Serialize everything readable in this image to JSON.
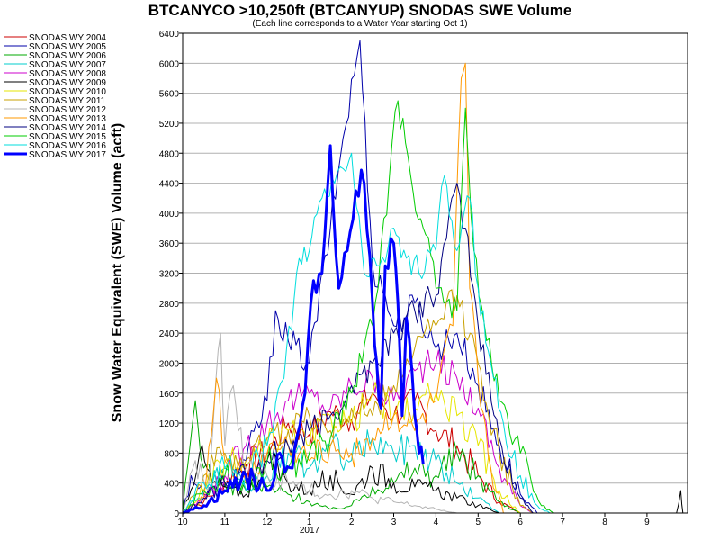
{
  "chart_data": {
    "type": "line",
    "title": "BTCANYCO >10,250ft (BTCANYUP) SNODAS SWE Volume",
    "subtitle": "(Each line corresponds to a Water Year starting Oct 1)",
    "ylabel": "Snow Water Equivalent (SWE) Volume (acft)",
    "xlabel": "",
    "ylim": [
      0,
      6400
    ],
    "yticks": [
      0,
      400,
      800,
      1200,
      1600,
      2000,
      2400,
      2800,
      3200,
      3600,
      4000,
      4400,
      4800,
      5200,
      5600,
      6000,
      6400
    ],
    "xlim": [
      10,
      10.9
    ],
    "xticks": [
      {
        "value": 10,
        "label": "10"
      },
      {
        "value": 11,
        "label": "11"
      },
      {
        "value": 12,
        "label": "12"
      },
      {
        "value": 1,
        "label": "1"
      },
      {
        "value": 2,
        "label": "2"
      },
      {
        "value": 3,
        "label": "3"
      },
      {
        "value": 4,
        "label": "4"
      },
      {
        "value": 5,
        "label": "5"
      },
      {
        "value": 6,
        "label": "6"
      },
      {
        "value": 7,
        "label": "7"
      },
      {
        "value": 8,
        "label": "8"
      },
      {
        "value": 9,
        "label": "9"
      }
    ],
    "xticks_order": [
      10,
      11,
      12,
      1,
      2,
      3,
      4,
      5,
      6,
      7,
      8,
      9
    ],
    "year_label": "2017",
    "grid": "horizontal",
    "legend_position": "left",
    "series": [
      {
        "name": "SNODAS WY 2004",
        "color": "#cc0000",
        "width": 1,
        "points": [
          [
            10.0,
            0
          ],
          [
            10.5,
            150
          ],
          [
            11.0,
            400
          ],
          [
            11.5,
            650
          ],
          [
            12.0,
            800
          ],
          [
            12.5,
            1200
          ],
          [
            1.0,
            1050
          ],
          [
            1.5,
            1350
          ],
          [
            2.0,
            1250
          ],
          [
            2.5,
            1600
          ],
          [
            3.0,
            1300
          ],
          [
            3.5,
            1500
          ],
          [
            4.0,
            1100
          ],
          [
            4.5,
            900
          ],
          [
            5.0,
            500
          ],
          [
            5.5,
            150
          ],
          [
            6.0,
            0
          ]
        ]
      },
      {
        "name": "SNODAS WY 2005",
        "color": "#0000aa",
        "width": 1,
        "points": [
          [
            10.0,
            0
          ],
          [
            10.2,
            500
          ],
          [
            10.5,
            250
          ],
          [
            11.0,
            350
          ],
          [
            11.5,
            700
          ],
          [
            12.0,
            1500
          ],
          [
            12.2,
            2700
          ],
          [
            12.5,
            2300
          ],
          [
            1.0,
            2000
          ],
          [
            1.5,
            3800
          ],
          [
            1.8,
            5000
          ],
          [
            2.2,
            6300
          ],
          [
            2.5,
            3300
          ],
          [
            2.8,
            2900
          ],
          [
            3.0,
            2500
          ],
          [
            3.5,
            2800
          ],
          [
            4.0,
            2200
          ],
          [
            4.5,
            2400
          ],
          [
            5.0,
            1700
          ],
          [
            5.5,
            900
          ],
          [
            6.0,
            250
          ],
          [
            6.4,
            0
          ]
        ]
      },
      {
        "name": "SNODAS WY 2006",
        "color": "#00aa00",
        "width": 1,
        "points": [
          [
            10.0,
            0
          ],
          [
            10.3,
            1500
          ],
          [
            10.5,
            600
          ],
          [
            11.0,
            400
          ],
          [
            11.5,
            300
          ],
          [
            12.0,
            350
          ],
          [
            12.5,
            250
          ],
          [
            1.0,
            150
          ],
          [
            1.5,
            50
          ],
          [
            2.0,
            100
          ],
          [
            2.5,
            350
          ],
          [
            3.0,
            400
          ],
          [
            3.5,
            600
          ],
          [
            4.0,
            500
          ],
          [
            4.5,
            800
          ],
          [
            5.0,
            500
          ],
          [
            5.5,
            150
          ],
          [
            6.0,
            0
          ]
        ]
      },
      {
        "name": "SNODAS WY 2007",
        "color": "#00cccc",
        "width": 1,
        "points": [
          [
            10.0,
            0
          ],
          [
            10.5,
            300
          ],
          [
            11.0,
            600
          ],
          [
            11.5,
            300
          ],
          [
            12.0,
            500
          ],
          [
            12.5,
            800
          ],
          [
            1.0,
            600
          ],
          [
            1.5,
            900
          ],
          [
            2.0,
            700
          ],
          [
            2.5,
            1000
          ],
          [
            3.0,
            800
          ],
          [
            3.5,
            900
          ],
          [
            4.0,
            700
          ],
          [
            4.5,
            400
          ],
          [
            5.0,
            200
          ],
          [
            5.5,
            0
          ]
        ]
      },
      {
        "name": "SNODAS WY 2008",
        "color": "#cc00cc",
        "width": 1,
        "points": [
          [
            10.0,
            0
          ],
          [
            10.5,
            200
          ],
          [
            11.0,
            500
          ],
          [
            11.5,
            900
          ],
          [
            12.0,
            1200
          ],
          [
            12.5,
            1500
          ],
          [
            1.0,
            1600
          ],
          [
            1.5,
            1400
          ],
          [
            2.0,
            1700
          ],
          [
            2.5,
            1800
          ],
          [
            3.0,
            1500
          ],
          [
            3.5,
            1900
          ],
          [
            4.0,
            2000
          ],
          [
            4.5,
            1800
          ],
          [
            5.0,
            1400
          ],
          [
            5.5,
            600
          ],
          [
            6.0,
            100
          ],
          [
            6.3,
            0
          ]
        ]
      },
      {
        "name": "SNODAS WY 2009",
        "color": "#000000",
        "width": 1,
        "points": [
          [
            10.0,
            0
          ],
          [
            10.4,
            800
          ],
          [
            10.7,
            400
          ],
          [
            11.0,
            350
          ],
          [
            11.5,
            250
          ],
          [
            12.0,
            700
          ],
          [
            12.5,
            400
          ],
          [
            1.0,
            300
          ],
          [
            1.5,
            500
          ],
          [
            2.0,
            250
          ],
          [
            2.5,
            600
          ],
          [
            3.0,
            400
          ],
          [
            3.5,
            350
          ],
          [
            4.0,
            300
          ],
          [
            4.5,
            200
          ],
          [
            5.0,
            100
          ],
          [
            5.5,
            0
          ],
          [
            9.7,
            0
          ],
          [
            9.8,
            300
          ],
          [
            9.85,
            0
          ]
        ]
      },
      {
        "name": "SNODAS WY 2010",
        "color": "#e6e600",
        "width": 1,
        "points": [
          [
            10.0,
            0
          ],
          [
            10.5,
            300
          ],
          [
            11.0,
            700
          ],
          [
            11.5,
            600
          ],
          [
            12.0,
            900
          ],
          [
            12.5,
            1100
          ],
          [
            1.0,
            900
          ],
          [
            1.5,
            1300
          ],
          [
            2.0,
            1200
          ],
          [
            2.5,
            1600
          ],
          [
            3.0,
            1300
          ],
          [
            3.5,
            1400
          ],
          [
            4.0,
            1600
          ],
          [
            4.5,
            1300
          ],
          [
            5.0,
            900
          ],
          [
            5.5,
            300
          ],
          [
            6.0,
            0
          ]
        ]
      },
      {
        "name": "SNODAS WY 2011",
        "color": "#c8a000",
        "width": 1,
        "points": [
          [
            10.0,
            0
          ],
          [
            10.5,
            500
          ],
          [
            11.0,
            800
          ],
          [
            11.5,
            700
          ],
          [
            12.0,
            1000
          ],
          [
            12.5,
            1100
          ],
          [
            1.0,
            1300
          ],
          [
            1.5,
            1100
          ],
          [
            2.0,
            1400
          ],
          [
            2.5,
            1300
          ],
          [
            3.0,
            1700
          ],
          [
            3.5,
            2200
          ],
          [
            4.0,
            2500
          ],
          [
            4.5,
            2900
          ],
          [
            5.0,
            2000
          ],
          [
            5.5,
            800
          ],
          [
            6.0,
            100
          ],
          [
            6.3,
            0
          ]
        ]
      },
      {
        "name": "SNODAS WY 2012",
        "color": "#b4b4b4",
        "width": 1,
        "points": [
          [
            10.0,
            0
          ],
          [
            10.3,
            700
          ],
          [
            10.6,
            300
          ],
          [
            10.9,
            2400
          ],
          [
            11.0,
            900
          ],
          [
            11.2,
            1700
          ],
          [
            11.5,
            600
          ],
          [
            12.0,
            500
          ],
          [
            12.5,
            400
          ],
          [
            1.0,
            300
          ],
          [
            1.5,
            250
          ],
          [
            2.0,
            300
          ],
          [
            2.5,
            200
          ],
          [
            3.0,
            150
          ],
          [
            3.5,
            100
          ],
          [
            4.0,
            50
          ],
          [
            4.5,
            0
          ]
        ]
      },
      {
        "name": "SNODAS WY 2013",
        "color": "#ff9900",
        "width": 1,
        "points": [
          [
            10.0,
            0
          ],
          [
            10.5,
            200
          ],
          [
            10.8,
            1800
          ],
          [
            11.0,
            700
          ],
          [
            11.5,
            400
          ],
          [
            12.0,
            800
          ],
          [
            12.5,
            900
          ],
          [
            1.0,
            700
          ],
          [
            1.5,
            900
          ],
          [
            2.0,
            800
          ],
          [
            2.5,
            1000
          ],
          [
            3.0,
            1300
          ],
          [
            3.5,
            1100
          ],
          [
            4.0,
            1500
          ],
          [
            4.4,
            2500
          ],
          [
            4.6,
            5800
          ],
          [
            4.7,
            6000
          ],
          [
            4.8,
            3000
          ],
          [
            5.0,
            1800
          ],
          [
            5.3,
            600
          ],
          [
            5.6,
            0
          ]
        ]
      },
      {
        "name": "SNODAS WY 2014",
        "color": "#000080",
        "width": 1,
        "points": [
          [
            10.0,
            0
          ],
          [
            10.5,
            200
          ],
          [
            11.0,
            400
          ],
          [
            11.5,
            500
          ],
          [
            12.0,
            700
          ],
          [
            12.5,
            900
          ],
          [
            1.0,
            1100
          ],
          [
            1.5,
            1300
          ],
          [
            2.0,
            1700
          ],
          [
            2.5,
            2000
          ],
          [
            3.0,
            2400
          ],
          [
            3.5,
            2700
          ],
          [
            4.0,
            2900
          ],
          [
            4.5,
            4400
          ],
          [
            4.7,
            3800
          ],
          [
            5.0,
            2500
          ],
          [
            5.5,
            1000
          ],
          [
            6.0,
            200
          ],
          [
            6.3,
            0
          ]
        ]
      },
      {
        "name": "SNODAS WY 2015",
        "color": "#00cc00",
        "width": 1,
        "points": [
          [
            10.0,
            0
          ],
          [
            10.5,
            300
          ],
          [
            11.0,
            500
          ],
          [
            11.5,
            400
          ],
          [
            12.0,
            700
          ],
          [
            12.5,
            600
          ],
          [
            1.0,
            800
          ],
          [
            1.5,
            1000
          ],
          [
            2.0,
            1600
          ],
          [
            2.5,
            2500
          ],
          [
            2.9,
            4500
          ],
          [
            3.1,
            5500
          ],
          [
            3.4,
            4500
          ],
          [
            3.7,
            3800
          ],
          [
            4.0,
            3000
          ],
          [
            4.5,
            2700
          ],
          [
            4.7,
            5400
          ],
          [
            4.9,
            3500
          ],
          [
            5.2,
            2300
          ],
          [
            5.5,
            1500
          ],
          [
            6.0,
            800
          ],
          [
            6.5,
            100
          ],
          [
            6.8,
            0
          ]
        ]
      },
      {
        "name": "SNODAS WY 2016",
        "color": "#00dddd",
        "width": 1,
        "points": [
          [
            10.0,
            0
          ],
          [
            10.5,
            400
          ],
          [
            11.0,
            600
          ],
          [
            11.5,
            500
          ],
          [
            12.0,
            900
          ],
          [
            12.4,
            1800
          ],
          [
            12.7,
            3200
          ],
          [
            1.0,
            3500
          ],
          [
            1.3,
            4200
          ],
          [
            1.6,
            4400
          ],
          [
            2.0,
            4800
          ],
          [
            2.3,
            3200
          ],
          [
            2.6,
            3300
          ],
          [
            3.0,
            3800
          ],
          [
            3.3,
            3400
          ],
          [
            3.6,
            3200
          ],
          [
            4.0,
            3500
          ],
          [
            4.2,
            4500
          ],
          [
            4.5,
            3500
          ],
          [
            4.8,
            4200
          ],
          [
            5.0,
            3000
          ],
          [
            5.3,
            2000
          ],
          [
            5.6,
            1200
          ],
          [
            6.0,
            500
          ],
          [
            6.4,
            100
          ],
          [
            6.7,
            0
          ]
        ]
      },
      {
        "name": "SNODAS WY 2017",
        "color": "#0000ff",
        "width": 3,
        "points": [
          [
            10.0,
            0
          ],
          [
            10.5,
            100
          ],
          [
            11.0,
            300
          ],
          [
            11.5,
            500
          ],
          [
            12.0,
            300
          ],
          [
            12.3,
            800
          ],
          [
            12.6,
            600
          ],
          [
            12.9,
            1600
          ],
          [
            1.1,
            3100
          ],
          [
            1.3,
            3200
          ],
          [
            1.5,
            4900
          ],
          [
            1.7,
            3000
          ],
          [
            1.9,
            3500
          ],
          [
            2.1,
            4300
          ],
          [
            2.3,
            4400
          ],
          [
            2.5,
            2800
          ],
          [
            2.6,
            2000
          ],
          [
            2.7,
            1400
          ],
          [
            2.8,
            3300
          ],
          [
            3.0,
            3600
          ],
          [
            3.1,
            2800
          ],
          [
            3.2,
            1300
          ],
          [
            3.3,
            2600
          ],
          [
            3.5,
            1300
          ],
          [
            3.6,
            800
          ],
          [
            3.7,
            650
          ]
        ]
      }
    ]
  }
}
